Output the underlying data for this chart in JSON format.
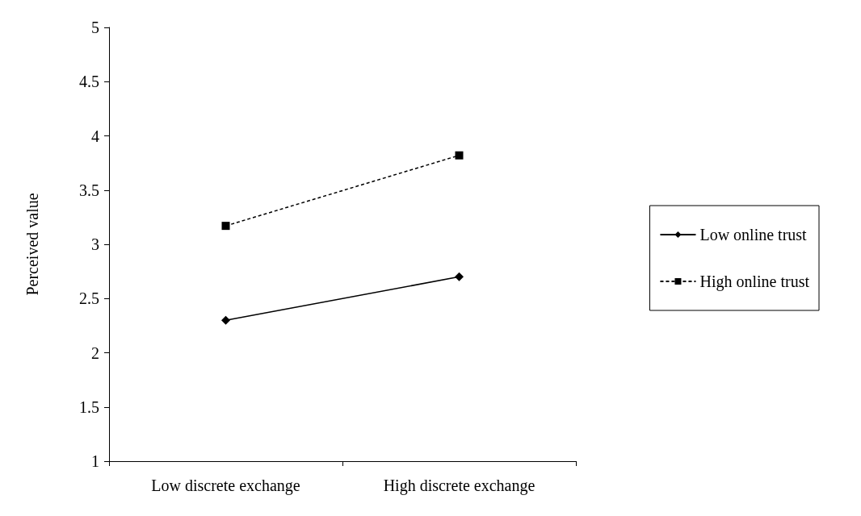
{
  "chart_data": {
    "type": "line",
    "ylabel": "Perceived value",
    "categories": [
      "Low discrete exchange",
      "High discrete exchange"
    ],
    "series": [
      {
        "name": "Low online trust",
        "color": "#000000",
        "values": [
          2.3,
          2.7
        ],
        "marker": "diamond",
        "line_style": "solid"
      },
      {
        "name": "High online trust",
        "color": "#000000",
        "values": [
          3.17,
          3.82
        ],
        "marker": "square",
        "line_style": "dashed"
      }
    ],
    "ylim": [
      1,
      5
    ],
    "yticks": [
      1,
      1.5,
      2,
      2.5,
      3,
      3.5,
      4,
      4.5,
      5
    ],
    "grid": false,
    "legend": "right"
  }
}
